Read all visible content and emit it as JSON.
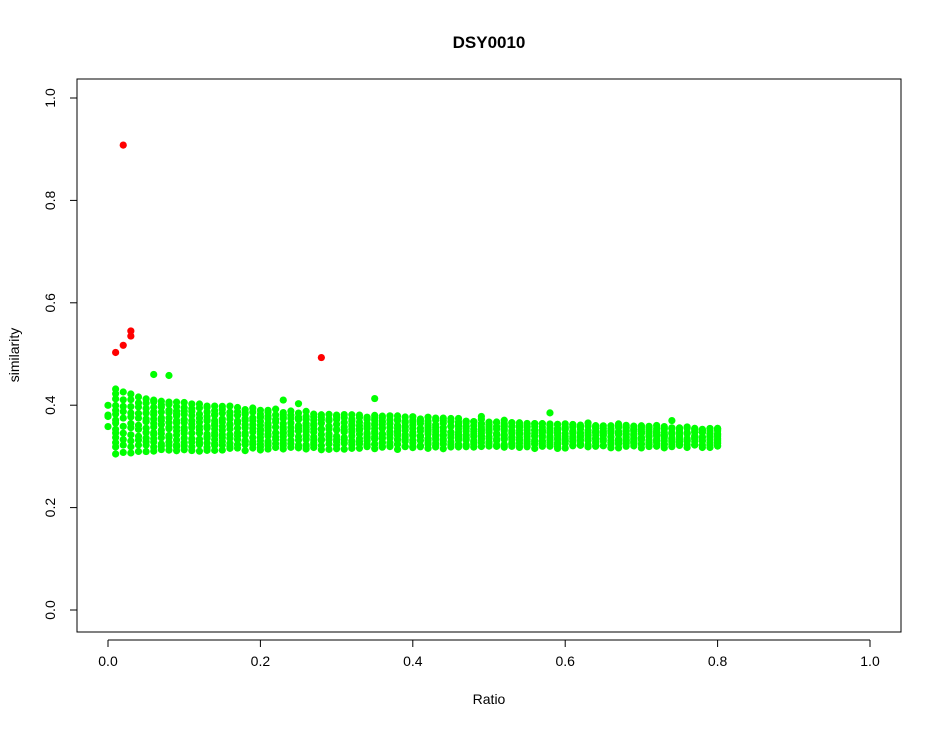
{
  "chart_data": {
    "type": "scatter",
    "title": "DSY0010",
    "xlabel": "Ratio",
    "ylabel": "similarity",
    "xlim": [
      0.0,
      1.0
    ],
    "ylim": [
      0.0,
      1.0
    ],
    "x_ticks": [
      "0.0",
      "0.2",
      "0.4",
      "0.6",
      "0.8",
      "1.0"
    ],
    "y_ticks": [
      "0.0",
      "0.2",
      "0.4",
      "0.6",
      "0.8",
      "1.0"
    ],
    "grid": false,
    "legend": "none",
    "series": [
      {
        "color": "#00ff00",
        "description_of_pattern": "dense band of points at every 0.01 ratio step from 0.00 to 0.80, similarity spread from ~0.30-0.46 at low ratio narrowing to ~0.32-0.35 at ratio 0.80",
        "x_range": [
          0.0,
          0.8
        ],
        "x_step": 0.01,
        "band_low_start": 0.3,
        "band_high_start": 0.45,
        "band_low_end": 0.32,
        "band_high_end": 0.355,
        "sparse_highs": [
          [
            0.06,
            0.46
          ],
          [
            0.08,
            0.458
          ],
          [
            0.23,
            0.41
          ],
          [
            0.25,
            0.403
          ],
          [
            0.35,
            0.413
          ],
          [
            0.49,
            0.378
          ],
          [
            0.58,
            0.385
          ],
          [
            0.74,
            0.37
          ]
        ]
      },
      {
        "color": "#ff0000",
        "points": [
          [
            0.02,
            0.908
          ],
          [
            0.03,
            0.545
          ],
          [
            0.03,
            0.535
          ],
          [
            0.02,
            0.517
          ],
          [
            0.01,
            0.503
          ],
          [
            0.28,
            0.493
          ]
        ]
      }
    ]
  }
}
